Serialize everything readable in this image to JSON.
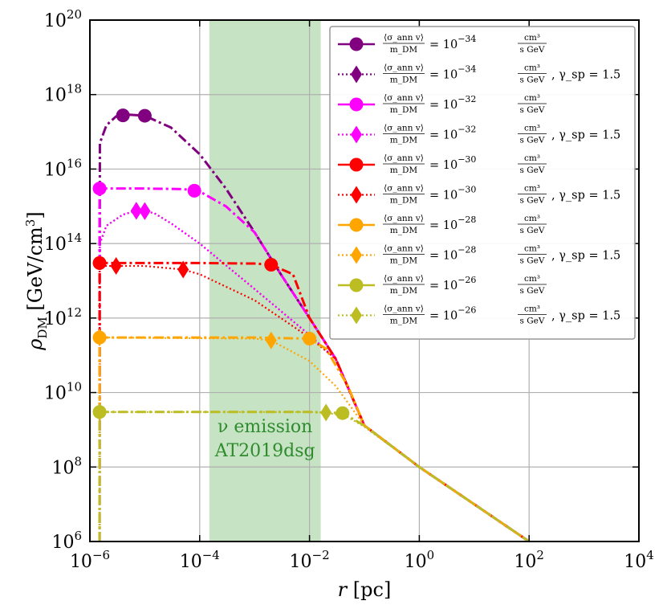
{
  "chart_data": {
    "type": "line",
    "xscale": "log",
    "yscale": "log",
    "xlim": [
      1e-06,
      10000
    ],
    "ylim": [
      1000000.0,
      1e+20
    ],
    "xlabel": "r [pc]",
    "ylabel": "ρ_DM [GeV/cm³]",
    "xlabel_parts": {
      "var": "r",
      "unit": "[pc]"
    },
    "ylabel_parts": {
      "var": "ρ",
      "sub": "DM",
      "unit": "[GeV/cm",
      "unit_sup": "3",
      "unit_close": "]"
    },
    "grid": true,
    "x_ticks": [
      {
        "value": 1e-06,
        "base": "10",
        "exp": "−6"
      },
      {
        "value": 0.0001,
        "base": "10",
        "exp": "−4"
      },
      {
        "value": 0.01,
        "base": "10",
        "exp": "−2"
      },
      {
        "value": 1,
        "base": "10",
        "exp": "0"
      },
      {
        "value": 100,
        "base": "10",
        "exp": "2"
      },
      {
        "value": 10000,
        "base": "10",
        "exp": "4"
      }
    ],
    "y_ticks": [
      {
        "value": 1000000.0,
        "base": "10",
        "exp": "6"
      },
      {
        "value": 100000000.0,
        "base": "10",
        "exp": "8"
      },
      {
        "value": 10000000000.0,
        "base": "10",
        "exp": "10"
      },
      {
        "value": 1000000000000.0,
        "base": "10",
        "exp": "12"
      },
      {
        "value": 100000000000000.0,
        "base": "10",
        "exp": "14"
      },
      {
        "value": 1e+16,
        "base": "10",
        "exp": "16"
      },
      {
        "value": 1e+18,
        "base": "10",
        "exp": "18"
      },
      {
        "value": 1e+20,
        "base": "10",
        "exp": "20"
      }
    ],
    "shaded_region": {
      "x_range": [
        0.00015,
        0.016
      ],
      "color": "#c6e3c3",
      "label_line1": "ν emission",
      "label_line2": "AT2019dsg",
      "label_color": "#2e8b2e"
    },
    "legend_location": "upper-right",
    "legend_frac_num": "⟨σ_ann v⟩",
    "legend_frac_den": "m_DM",
    "legend_unit_num": "cm³",
    "legend_unit_den": "s GeV",
    "legend_gamma": "γ_sp = 1.5",
    "series": [
      {
        "name": "⟨σ_ann v⟩/m_DM = 10^-34 cm³/(s GeV)",
        "exp_label": "−34",
        "gamma": false,
        "color": "#800080",
        "dash": "12,4,3,4",
        "marker": "circle",
        "marker_x": [
          4e-06,
          1e-05
        ],
        "points": [
          [
            1.5e-06,
            1000000.0
          ],
          [
            1.52e-06,
            5e+16
          ],
          [
            2e-06,
            1.5e+17
          ],
          [
            3e-06,
            2.6e+17
          ],
          [
            5e-06,
            2.9e+17
          ],
          [
            1e-05,
            2.7e+17
          ],
          [
            3e-05,
            1.3e+17
          ],
          [
            0.0001,
            2.5e+16
          ],
          [
            0.0003,
            3000000000000000.0
          ],
          [
            0.001,
            200000000000000.0
          ],
          [
            0.003,
            15000000000000.0
          ],
          [
            0.01,
            1000000000000.0
          ],
          [
            0.03,
            80000000000.0
          ],
          [
            0.1,
            1300000000.0
          ],
          [
            1,
            100000000.0
          ],
          [
            10,
            10000000.0
          ],
          [
            100,
            1000000.0
          ]
        ]
      },
      {
        "name": "⟨σ_ann v⟩/m_DM = 10^-34 cm³/(s GeV), γ_sp = 1.5",
        "exp_label": "−34",
        "gamma": true,
        "color": "#800080",
        "dash": "2,3",
        "marker": "diamond",
        "marker_x": [
          7e-06,
          1e-05
        ],
        "points": [
          [
            1.5e-06,
            1000000.0
          ],
          [
            1.52e-06,
            100000000000000.0
          ],
          [
            2e-06,
            300000000000000.0
          ],
          [
            4e-06,
            600000000000000.0
          ],
          [
            8e-06,
            800000000000000.0
          ],
          [
            1.5e-05,
            650000000000000.0
          ],
          [
            3e-05,
            350000000000000.0
          ],
          [
            0.0001,
            100000000000000.0
          ],
          [
            0.001,
            6000000000000.0
          ],
          [
            0.01,
            350000000000.0
          ],
          [
            0.03,
            80000000000.0
          ],
          [
            0.1,
            1300000000.0
          ],
          [
            1,
            100000000.0
          ],
          [
            10,
            10000000.0
          ],
          [
            100,
            1000000.0
          ]
        ]
      },
      {
        "name": "⟨σ_ann v⟩/m_DM = 10^-32 cm³/(s GeV)",
        "exp_label": "−32",
        "gamma": false,
        "color": "#ff00ff",
        "dash": "12,4,3,4",
        "marker": "circle",
        "marker_x": [
          1.5e-06,
          8e-05
        ],
        "points": [
          [
            1.5e-06,
            1000000.0
          ],
          [
            1.5e-06,
            3000000000000000.0
          ],
          [
            1e-05,
            3000000000000000.0
          ],
          [
            5e-05,
            2900000000000000.0
          ],
          [
            0.0001,
            2500000000000000.0
          ],
          [
            0.0003,
            1000000000000000.0
          ],
          [
            0.001,
            200000000000000.0
          ],
          [
            0.003,
            15000000000000.0
          ],
          [
            0.01,
            1000000000000.0
          ],
          [
            0.03,
            80000000000.0
          ],
          [
            0.1,
            1300000000.0
          ],
          [
            1,
            100000000.0
          ],
          [
            10,
            10000000.0
          ],
          [
            100,
            1000000.0
          ]
        ]
      },
      {
        "name": "⟨σ_ann v⟩/m_DM = 10^-32 cm³/(s GeV), γ_sp = 1.5",
        "exp_label": "−32",
        "gamma": true,
        "color": "#ff00ff",
        "dash": "2,3",
        "marker": "diamond",
        "marker_x": [
          7e-06,
          1e-05
        ],
        "points": [
          [
            1.5e-06,
            1000000.0
          ],
          [
            1.52e-06,
            100000000000000.0
          ],
          [
            2e-06,
            300000000000000.0
          ],
          [
            4e-06,
            600000000000000.0
          ],
          [
            8e-06,
            800000000000000.0
          ],
          [
            1.5e-05,
            650000000000000.0
          ],
          [
            3e-05,
            350000000000000.0
          ],
          [
            0.0001,
            100000000000000.0
          ],
          [
            0.001,
            6000000000000.0
          ],
          [
            0.01,
            350000000000.0
          ],
          [
            0.03,
            80000000000.0
          ],
          [
            0.1,
            1300000000.0
          ],
          [
            1,
            100000000.0
          ],
          [
            10,
            10000000.0
          ],
          [
            100,
            1000000.0
          ]
        ]
      },
      {
        "name": "⟨σ_ann v⟩/m_DM = 10^-30 cm³/(s GeV)",
        "exp_label": "−30",
        "gamma": false,
        "color": "#ff0000",
        "dash": "12,4,3,4",
        "marker": "circle",
        "marker_x": [
          1.5e-06,
          0.002
        ],
        "points": [
          [
            1.5e-06,
            1000000.0
          ],
          [
            1.5e-06,
            30000000000000.0
          ],
          [
            0.0001,
            30000000000000.0
          ],
          [
            0.001,
            29000000000000.0
          ],
          [
            0.002,
            27000000000000.0
          ],
          [
            0.005,
            15000000000000.0
          ],
          [
            0.01,
            1000000000000.0
          ],
          [
            0.03,
            80000000000.0
          ],
          [
            0.1,
            1300000000.0
          ],
          [
            1,
            100000000.0
          ],
          [
            10,
            10000000.0
          ],
          [
            100,
            1000000.0
          ]
        ]
      },
      {
        "name": "⟨σ_ann v⟩/m_DM = 10^-30 cm³/(s GeV), γ_sp = 1.5",
        "exp_label": "−30",
        "gamma": true,
        "color": "#ff0000",
        "dash": "2,3",
        "marker": "diamond",
        "marker_x": [
          3e-06,
          5e-05
        ],
        "points": [
          [
            1.5e-06,
            1000000.0
          ],
          [
            1.5e-06,
            25000000000000.0
          ],
          [
            1e-05,
            25000000000000.0
          ],
          [
            5e-05,
            20000000000000.0
          ],
          [
            0.0001,
            15000000000000.0
          ],
          [
            0.001,
            3000000000000.0
          ],
          [
            0.01,
            300000000000.0
          ],
          [
            0.03,
            80000000000.0
          ],
          [
            0.1,
            1300000000.0
          ],
          [
            1,
            100000000.0
          ],
          [
            10,
            10000000.0
          ],
          [
            100,
            1000000.0
          ]
        ]
      },
      {
        "name": "⟨σ_ann v⟩/m_DM = 10^-28 cm³/(s GeV)",
        "exp_label": "−28",
        "gamma": false,
        "color": "#ffa500",
        "dash": "12,4,3,4",
        "marker": "circle",
        "marker_x": [
          1.5e-06,
          0.01
        ],
        "points": [
          [
            1.5e-06,
            1000000.0
          ],
          [
            1.5e-06,
            300000000000.0
          ],
          [
            0.001,
            300000000000.0
          ],
          [
            0.01,
            280000000000.0
          ],
          [
            0.02,
            150000000000.0
          ],
          [
            0.05,
            15000000000.0
          ],
          [
            0.1,
            1300000000.0
          ],
          [
            1,
            100000000.0
          ],
          [
            10,
            10000000.0
          ],
          [
            100,
            1000000.0
          ]
        ]
      },
      {
        "name": "⟨σ_ann v⟩/m_DM = 10^-28 cm³/(s GeV), γ_sp = 1.5",
        "exp_label": "−28",
        "gamma": true,
        "color": "#ffa500",
        "dash": "2,3",
        "marker": "diamond",
        "marker_x": [
          1.5e-06,
          0.002
        ],
        "points": [
          [
            1.5e-06,
            1000000.0
          ],
          [
            1.5e-06,
            300000000000.0
          ],
          [
            0.001,
            280000000000.0
          ],
          [
            0.002,
            250000000000.0
          ],
          [
            0.01,
            70000000000.0
          ],
          [
            0.03,
            15000000000.0
          ],
          [
            0.1,
            1300000000.0
          ],
          [
            1,
            100000000.0
          ],
          [
            10,
            10000000.0
          ],
          [
            100,
            1000000.0
          ]
        ]
      },
      {
        "name": "⟨σ_ann v⟩/m_DM = 10^-26 cm³/(s GeV)",
        "exp_label": "−26",
        "gamma": false,
        "color": "#bcbd22",
        "dash": "12,4,3,4",
        "marker": "circle",
        "marker_x": [
          1.5e-06,
          0.04
        ],
        "points": [
          [
            1.5e-06,
            1000000.0
          ],
          [
            1.5e-06,
            3000000000.0
          ],
          [
            0.01,
            3000000000.0
          ],
          [
            0.04,
            2800000000.0
          ],
          [
            0.1,
            1300000000.0
          ],
          [
            1,
            100000000.0
          ],
          [
            10,
            10000000.0
          ],
          [
            100,
            1000000.0
          ]
        ]
      },
      {
        "name": "⟨σ_ann v⟩/m_DM = 10^-26 cm³/(s GeV), γ_sp = 1.5",
        "exp_label": "−26",
        "gamma": true,
        "color": "#bcbd22",
        "dash": "2,3",
        "marker": "diamond",
        "marker_x": [
          1.5e-06,
          0.02
        ],
        "points": [
          [
            1.5e-06,
            1000000.0
          ],
          [
            1.5e-06,
            3000000000.0
          ],
          [
            0.01,
            3000000000.0
          ],
          [
            0.02,
            2900000000.0
          ],
          [
            0.05,
            2200000000.0
          ],
          [
            0.1,
            1200000000.0
          ],
          [
            1,
            100000000.0
          ],
          [
            10,
            10000000.0
          ],
          [
            100,
            1000000.0
          ]
        ]
      }
    ]
  }
}
